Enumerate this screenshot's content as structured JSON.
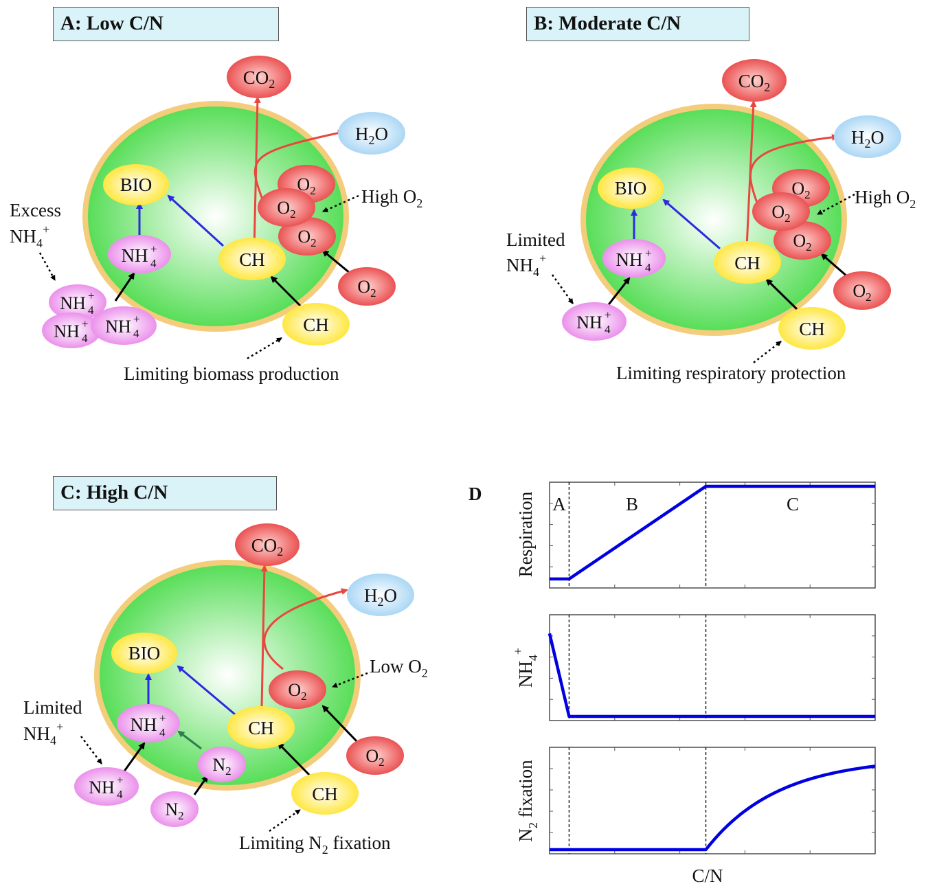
{
  "panels": {
    "a": {
      "title": "A: Low C/N",
      "excess_line1": "Excess",
      "excess_line2": "NH",
      "o2_note": "High O",
      "limit_note": "Limiting biomass production"
    },
    "b": {
      "title": "B: Moderate C/N",
      "limited_line1": "Limited",
      "limited_line2": "NH",
      "o2_note": "High O",
      "limit_note": "Limiting respiratory protection"
    },
    "c": {
      "title": "C: High C/N",
      "limited_line1": "Limited",
      "limited_line2": "NH",
      "o2_note": "Low O",
      "limit_note_prefix": "Limiting N",
      "limit_note_suffix": " fixation"
    }
  },
  "molecules": {
    "co2": "CO",
    "h2o_h": "H",
    "h2o_o": "O",
    "o2": "O",
    "bio": "BIO",
    "nh": "NH",
    "ch": "CH",
    "n2": "N",
    "sub_2": "2",
    "sub_4": "4",
    "sup_plus": "+"
  },
  "panel_d": {
    "label": "D",
    "xlabel": "C/N",
    "regions": [
      "A",
      "B",
      "C"
    ],
    "ylabels": {
      "respiration": "Respiration",
      "nh4_main": "NH",
      "nh4_sub": "4",
      "nh4_sup": "+",
      "n2_prefix": "N",
      "n2_sub": "2",
      "n2_suffix": " fixation"
    }
  },
  "chart_data": [
    {
      "type": "line",
      "ylabel": "Respiration",
      "xlabel": "",
      "x": [
        0,
        0.06,
        0.48,
        1.0
      ],
      "values": [
        0.05,
        0.05,
        1.0,
        1.0
      ],
      "grid": false,
      "regions": [
        "A",
        "B",
        "C"
      ]
    },
    {
      "type": "line",
      "ylabel": "NH4+",
      "xlabel": "",
      "x": [
        0,
        0.06,
        1.0
      ],
      "values": [
        0.85,
        0.0,
        0.0
      ],
      "grid": false
    },
    {
      "type": "line",
      "ylabel": "N2 fixation",
      "xlabel": "C/N",
      "x": [
        0,
        0.48,
        0.56,
        0.64,
        0.72,
        0.8,
        0.9,
        1.0
      ],
      "values": [
        0,
        0,
        0.3,
        0.49,
        0.62,
        0.71,
        0.79,
        0.85
      ],
      "grid": false
    }
  ],
  "colors": {
    "cell_fill": "#59e059",
    "cell_border": "#f5cf7d",
    "co2": "#e8473f",
    "h2o": "#a9d6f5",
    "bio_ch": "#ffe61c",
    "nh4": "#ea80ea",
    "line": "#0000e0"
  }
}
